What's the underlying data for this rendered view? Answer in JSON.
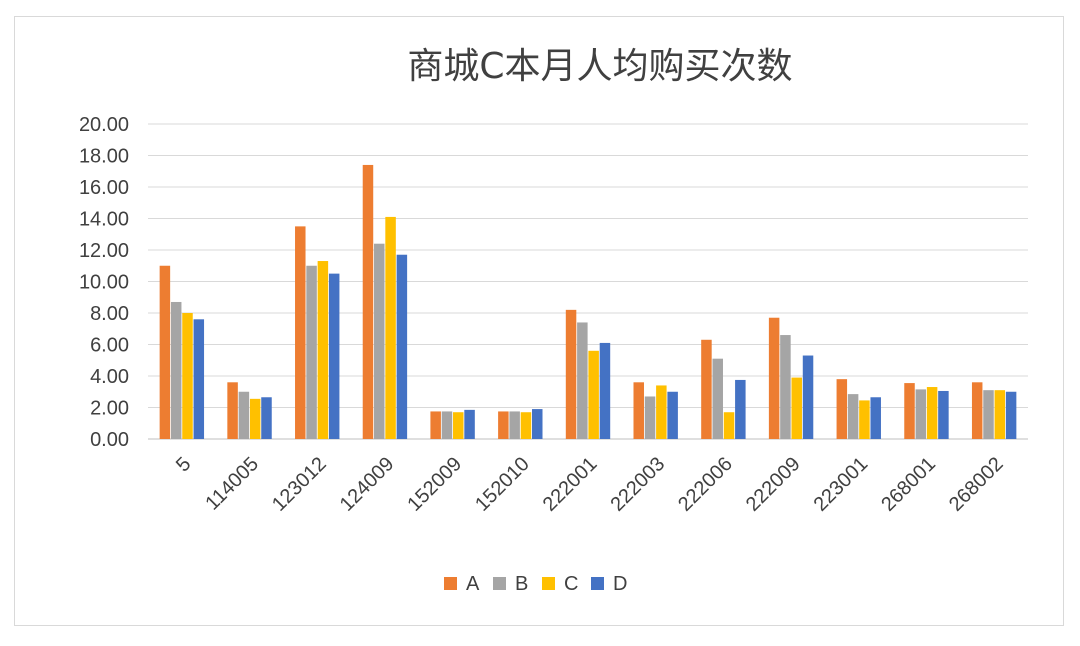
{
  "chart_data": {
    "type": "bar",
    "title": "商城C本月人均购买次数",
    "xlabel": "",
    "ylabel": "",
    "ylim": [
      0,
      20
    ],
    "yticks": [
      "0.00",
      "2.00",
      "4.00",
      "6.00",
      "8.00",
      "10.00",
      "12.00",
      "14.00",
      "16.00",
      "18.00",
      "20.00"
    ],
    "grid": true,
    "legend_position": "bottom",
    "categories": [
      "5",
      "114005",
      "123012",
      "124009",
      "152009",
      "152010",
      "222001",
      "222003",
      "222006",
      "222009",
      "223001",
      "268001",
      "268002"
    ],
    "series": [
      {
        "name": "A",
        "color": "#ED7D31",
        "values": [
          11.0,
          3.6,
          13.5,
          17.4,
          1.75,
          1.75,
          8.2,
          3.6,
          6.3,
          7.7,
          3.8,
          3.55,
          3.6
        ]
      },
      {
        "name": "B",
        "color": "#A5A5A5",
        "values": [
          8.7,
          3.0,
          11.0,
          12.4,
          1.75,
          1.75,
          7.4,
          2.7,
          5.1,
          6.6,
          2.85,
          3.15,
          3.1
        ]
      },
      {
        "name": "C",
        "color": "#FFC000",
        "values": [
          8.0,
          2.55,
          11.3,
          14.1,
          1.7,
          1.7,
          5.6,
          3.4,
          1.7,
          3.9,
          2.45,
          3.3,
          3.1
        ]
      },
      {
        "name": "D",
        "color": "#4472C4",
        "values": [
          7.6,
          2.65,
          10.5,
          11.7,
          1.85,
          1.9,
          6.1,
          3.0,
          3.75,
          5.3,
          2.65,
          3.05,
          3.0
        ]
      }
    ]
  }
}
